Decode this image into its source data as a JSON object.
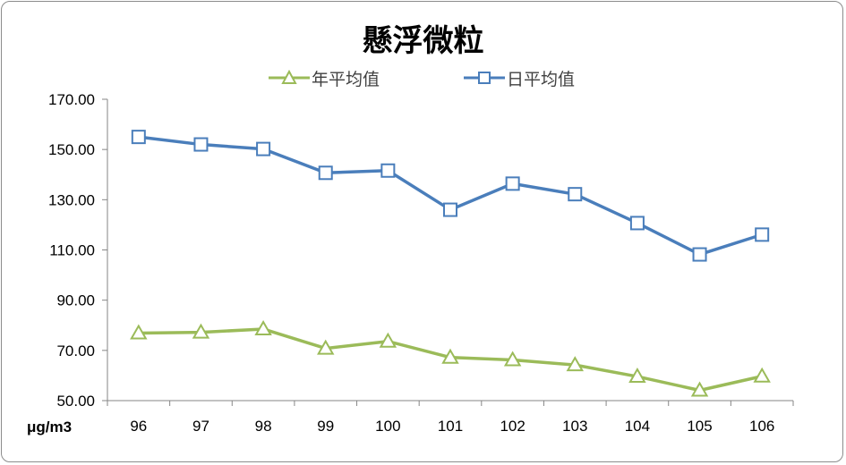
{
  "chart_data": {
    "type": "line",
    "title": "懸浮微粒",
    "unit_label": "μg/m3",
    "categories": [
      "96",
      "97",
      "98",
      "99",
      "100",
      "101",
      "102",
      "103",
      "104",
      "105",
      "106"
    ],
    "series": [
      {
        "name": "年平均值",
        "color": "#9bbb59",
        "marker": "triangle",
        "values": [
          76.9,
          77.2,
          78.5,
          70.8,
          73.6,
          67.2,
          66.2,
          64.2,
          59.6,
          54.1,
          59.7
        ]
      },
      {
        "name": "日平均值",
        "color": "#4a7ebb",
        "marker": "square",
        "values": [
          155.0,
          152.0,
          150.2,
          140.7,
          141.6,
          126.0,
          136.4,
          132.2,
          120.7,
          108.2,
          116.1
        ]
      }
    ],
    "ylim": [
      50,
      170
    ],
    "yticks": [
      "50.00",
      "70.00",
      "90.00",
      "110.00",
      "130.00",
      "150.00",
      "170.00"
    ],
    "grid": false,
    "legend_position": "top"
  }
}
